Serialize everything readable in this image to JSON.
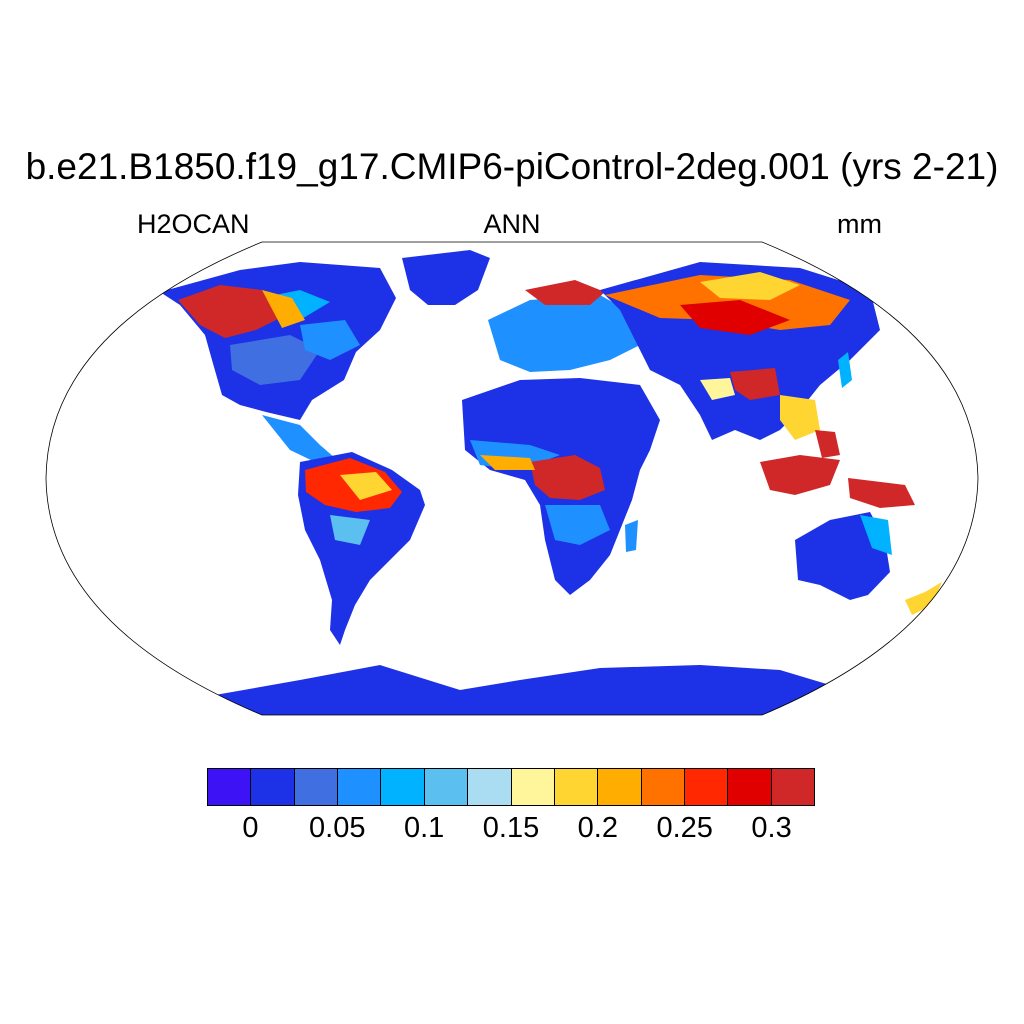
{
  "map": {
    "title": "b.e21.B1850.f19_g17.CMIP6-piControl-2deg.001 (yrs 2-21)",
    "left_string": "H2OCAN",
    "center_string": "ANN",
    "right_string": "mm",
    "projection": "robinson",
    "field_range": [
      0,
      0.32
    ],
    "colorbar": {
      "colors": [
        "#3d12f5",
        "#1d31e6",
        "#3f6fe0",
        "#1e90ff",
        "#00b2ff",
        "#5bc0f0",
        "#aadcf2",
        "#fff59a",
        "#ffd531",
        "#ffad00",
        "#ff7200",
        "#ff2800",
        "#e00000",
        "#d02828"
      ],
      "levels": [
        0,
        0.025,
        0.05,
        0.075,
        0.1,
        0.125,
        0.15,
        0.175,
        0.2,
        0.225,
        0.25,
        0.275,
        0.3
      ],
      "tick_labels": [
        "0",
        "0.05",
        "0.1",
        "0.15",
        "0.2",
        "0.25",
        "0.3"
      ]
    },
    "regions": [
      {
        "name": "Alaska",
        "value": 0.32
      },
      {
        "name": "Canada / North America",
        "value": 0.06
      },
      {
        "name": "Greenland",
        "value": 0.03
      },
      {
        "name": "Amazon",
        "value": 0.28
      },
      {
        "name": "Southern South America",
        "value": 0.05
      },
      {
        "name": "Sahara",
        "value": 0.03
      },
      {
        "name": "Central Africa",
        "value": 0.32
      },
      {
        "name": "Southern Africa",
        "value": 0.06
      },
      {
        "name": "Europe",
        "value": 0.1
      },
      {
        "name": "Siberia",
        "value": 0.25
      },
      {
        "name": "Central Asia",
        "value": 0.04
      },
      {
        "name": "Tibet",
        "value": 0.32
      },
      {
        "name": "Southeast Asia",
        "value": 0.2
      },
      {
        "name": "Indonesia",
        "value": 0.32
      },
      {
        "name": "Australia",
        "value": 0.03
      },
      {
        "name": "Antarctica",
        "value": 0.02
      }
    ]
  }
}
